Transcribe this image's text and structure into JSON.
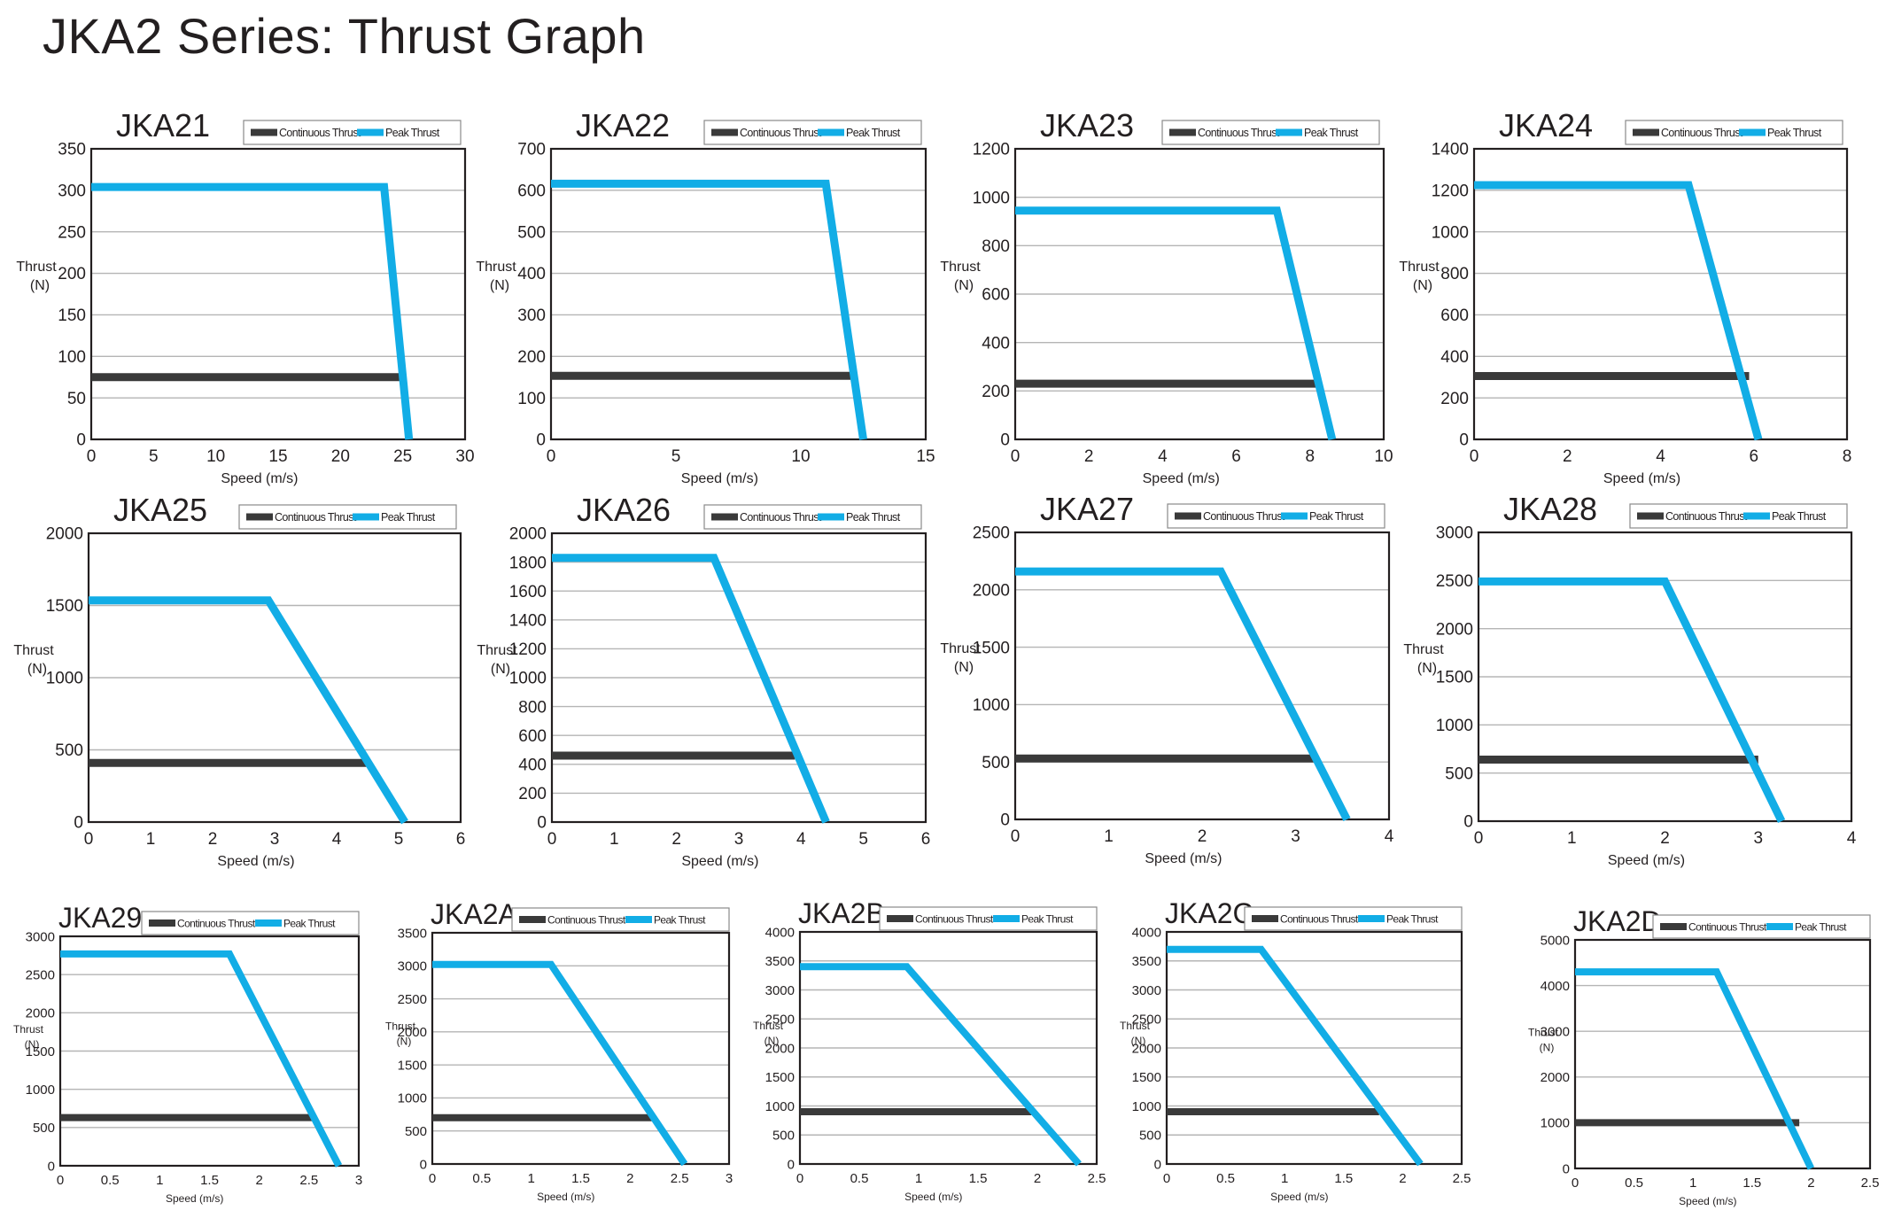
{
  "page": {
    "title": "JKA2 Series: Thrust Graph"
  },
  "colors": {
    "continuous": "#3a3a3a",
    "peak": "#12ade6",
    "grid": "#b5b5b5",
    "frame": "#231f20"
  },
  "chart_data": [
    {
      "type": "line",
      "title": "JKA21",
      "xlabel": "Speed (m/s)",
      "ylabel": "Thrust (N)",
      "xlim": [
        0,
        30
      ],
      "ylim": [
        0,
        350
      ],
      "xticks": [
        0,
        5,
        10,
        15,
        20,
        25,
        30
      ],
      "yticks": [
        0,
        50,
        100,
        150,
        200,
        250,
        300,
        350
      ],
      "legend": "top-right",
      "series": [
        {
          "name": "Continuous Thrust",
          "x": [
            0,
            25
          ],
          "y": [
            75,
            75
          ]
        },
        {
          "name": "Peak Thrust",
          "x": [
            0,
            23.5,
            25.5
          ],
          "y": [
            304,
            304,
            0
          ]
        }
      ]
    },
    {
      "type": "line",
      "title": "JKA22",
      "xlabel": "Speed (m/s)",
      "ylabel": "Thrust (N)",
      "xlim": [
        0,
        15
      ],
      "ylim": [
        0,
        700
      ],
      "xticks": [
        0,
        5,
        10,
        15
      ],
      "yticks": [
        0,
        100,
        200,
        300,
        400,
        500,
        600,
        700
      ],
      "legend": "top-right",
      "series": [
        {
          "name": "Continuous Thrust",
          "x": [
            0,
            12.2
          ],
          "y": [
            153,
            153
          ]
        },
        {
          "name": "Peak Thrust",
          "x": [
            0,
            11,
            12.5
          ],
          "y": [
            616,
            616,
            0
          ]
        }
      ]
    },
    {
      "type": "line",
      "title": "JKA23",
      "xlabel": "Speed (m/s)",
      "ylabel": "Thrust (N)",
      "xlim": [
        0,
        10
      ],
      "ylim": [
        0,
        1200
      ],
      "xticks": [
        0,
        2,
        4,
        6,
        8,
        10
      ],
      "yticks": [
        0,
        200,
        400,
        600,
        800,
        1000,
        1200
      ],
      "legend": "top-right",
      "series": [
        {
          "name": "Continuous Thrust",
          "x": [
            0,
            8.2
          ],
          "y": [
            230,
            230
          ]
        },
        {
          "name": "Peak Thrust",
          "x": [
            0,
            7.1,
            8.6
          ],
          "y": [
            945,
            945,
            0
          ]
        }
      ]
    },
    {
      "type": "line",
      "title": "JKA24",
      "xlabel": "Speed (m/s)",
      "ylabel": "Thrust (N)",
      "xlim": [
        0,
        8
      ],
      "ylim": [
        0,
        1400
      ],
      "xticks": [
        0,
        2,
        4,
        6,
        8
      ],
      "yticks": [
        0,
        200,
        400,
        600,
        800,
        1000,
        1200,
        1400
      ],
      "legend": "top-right",
      "series": [
        {
          "name": "Continuous Thrust",
          "x": [
            0,
            5.9
          ],
          "y": [
            305,
            305
          ]
        },
        {
          "name": "Peak Thrust",
          "x": [
            0,
            4.6,
            6.1
          ],
          "y": [
            1225,
            1225,
            0
          ]
        }
      ]
    },
    {
      "type": "line",
      "title": "JKA25",
      "xlabel": "Speed (m/s)",
      "ylabel": "Thrust (N)",
      "xlim": [
        0,
        6
      ],
      "ylim": [
        0,
        2000
      ],
      "xticks": [
        0,
        1,
        2,
        3,
        4,
        5,
        6
      ],
      "yticks": [
        0,
        500,
        1000,
        1500,
        2000
      ],
      "legend": "top-right",
      "series": [
        {
          "name": "Continuous Thrust",
          "x": [
            0,
            4.5
          ],
          "y": [
            410,
            410
          ]
        },
        {
          "name": "Peak Thrust",
          "x": [
            0,
            2.9,
            5.1
          ],
          "y": [
            1535,
            1535,
            0
          ]
        }
      ]
    },
    {
      "type": "line",
      "title": "JKA26",
      "xlabel": "Speed (m/s)",
      "ylabel": "Thrust (N)",
      "xlim": [
        0,
        6
      ],
      "ylim": [
        0,
        2000
      ],
      "xticks": [
        0,
        1,
        2,
        3,
        4,
        5,
        6
      ],
      "yticks": [
        0,
        200,
        400,
        600,
        800,
        1000,
        1200,
        1400,
        1600,
        1800,
        2000
      ],
      "legend": "top-right",
      "series": [
        {
          "name": "Continuous Thrust",
          "x": [
            0,
            3.9
          ],
          "y": [
            460,
            460
          ]
        },
        {
          "name": "Peak Thrust",
          "x": [
            0,
            2.6,
            4.4
          ],
          "y": [
            1830,
            1830,
            0
          ]
        }
      ]
    },
    {
      "type": "line",
      "title": "JKA27",
      "xlabel": "Speed (m/s)",
      "ylabel": "Thrust (N)",
      "xlim": [
        0,
        4
      ],
      "ylim": [
        0,
        2500
      ],
      "xticks": [
        0,
        1,
        2,
        3,
        4
      ],
      "yticks": [
        0,
        500,
        1000,
        1500,
        2000,
        2500
      ],
      "legend": "top-right",
      "series": [
        {
          "name": "Continuous Thrust",
          "x": [
            0,
            3.2
          ],
          "y": [
            530,
            530
          ]
        },
        {
          "name": "Peak Thrust",
          "x": [
            0,
            2.2,
            3.55
          ],
          "y": [
            2160,
            2160,
            0
          ]
        }
      ]
    },
    {
      "type": "line",
      "title": "JKA28",
      "xlabel": "Speed (m/s)",
      "ylabel": "Thrust (N)",
      "xlim": [
        0,
        4
      ],
      "ylim": [
        0,
        3000
      ],
      "xticks": [
        0,
        1,
        2,
        3,
        4
      ],
      "yticks": [
        0,
        500,
        1000,
        1500,
        2000,
        2500,
        3000
      ],
      "legend": "top-right",
      "series": [
        {
          "name": "Continuous Thrust",
          "x": [
            0,
            3.0
          ],
          "y": [
            640,
            640
          ]
        },
        {
          "name": "Peak Thrust",
          "x": [
            0,
            2.0,
            3.25
          ],
          "y": [
            2490,
            2490,
            0
          ]
        }
      ]
    },
    {
      "type": "line",
      "title": "JKA29",
      "xlabel": "Speed (m/s)",
      "ylabel": "Thrust (N)",
      "xlim": [
        0,
        3
      ],
      "ylim": [
        0,
        3000
      ],
      "xticks": [
        0,
        0.5,
        1,
        1.5,
        2,
        2.5,
        3
      ],
      "yticks": [
        0,
        500,
        1000,
        1500,
        2000,
        2500,
        3000
      ],
      "legend": "top-right",
      "series": [
        {
          "name": "Continuous Thrust",
          "x": [
            0,
            2.55
          ],
          "y": [
            630,
            630
          ]
        },
        {
          "name": "Peak Thrust",
          "x": [
            0,
            1.7,
            2.8
          ],
          "y": [
            2770,
            2770,
            0
          ]
        }
      ]
    },
    {
      "type": "line",
      "title": "JKA2A",
      "xlabel": "Speed (m/s)",
      "ylabel": "Thrust (N)",
      "xlim": [
        0,
        3
      ],
      "ylim": [
        0,
        3500
      ],
      "xticks": [
        0,
        0.5,
        1,
        1.5,
        2,
        2.5,
        3
      ],
      "yticks": [
        0,
        500,
        1000,
        1500,
        2000,
        2500,
        3000,
        3500
      ],
      "legend": "top-right",
      "series": [
        {
          "name": "Continuous Thrust",
          "x": [
            0,
            2.25
          ],
          "y": [
            700,
            700
          ]
        },
        {
          "name": "Peak Thrust",
          "x": [
            0,
            1.2,
            2.55
          ],
          "y": [
            3020,
            3020,
            0
          ]
        }
      ]
    },
    {
      "type": "line",
      "title": "JKA2B",
      "xlabel": "Speed (m/s)",
      "ylabel": "Thrust (N)",
      "xlim": [
        0,
        2.5
      ],
      "ylim": [
        0,
        4000
      ],
      "xticks": [
        0,
        0.5,
        1,
        1.5,
        2,
        2.5
      ],
      "yticks": [
        0,
        500,
        1000,
        1500,
        2000,
        2500,
        3000,
        3500,
        4000
      ],
      "legend": "top-right",
      "series": [
        {
          "name": "Continuous Thrust",
          "x": [
            0,
            1.95
          ],
          "y": [
            900,
            900
          ]
        },
        {
          "name": "Peak Thrust",
          "x": [
            0,
            0.9,
            2.35
          ],
          "y": [
            3400,
            3400,
            0
          ]
        }
      ]
    },
    {
      "type": "line",
      "title": "JKA2C",
      "xlabel": "Speed (m/s)",
      "ylabel": "Thrust (N)",
      "xlim": [
        0,
        2.5
      ],
      "ylim": [
        0,
        4000
      ],
      "xticks": [
        0,
        0.5,
        1,
        1.5,
        2,
        2.5
      ],
      "yticks": [
        0,
        500,
        1000,
        1500,
        2000,
        2500,
        3000,
        3500,
        4000
      ],
      "legend": "top-right",
      "series": [
        {
          "name": "Continuous Thrust",
          "x": [
            0,
            1.8
          ],
          "y": [
            900,
            900
          ]
        },
        {
          "name": "Peak Thrust",
          "x": [
            0,
            0.8,
            2.15
          ],
          "y": [
            3700,
            3700,
            0
          ]
        }
      ]
    },
    {
      "type": "line",
      "title": "JKA2D",
      "xlabel": "Speed (m/s)",
      "ylabel": "Thrust (N)",
      "xlim": [
        0,
        2.5
      ],
      "ylim": [
        0,
        5000
      ],
      "xticks": [
        0,
        0.5,
        1,
        1.5,
        2,
        2.5
      ],
      "yticks": [
        0,
        1000,
        2000,
        3000,
        4000,
        5000
      ],
      "legend": "top-right",
      "series": [
        {
          "name": "Continuous Thrust",
          "x": [
            0,
            1.9
          ],
          "y": [
            1000,
            1000
          ]
        },
        {
          "name": "Peak Thrust",
          "x": [
            0,
            1.2,
            2.0
          ],
          "y": [
            4300,
            4300,
            0
          ]
        }
      ]
    }
  ]
}
